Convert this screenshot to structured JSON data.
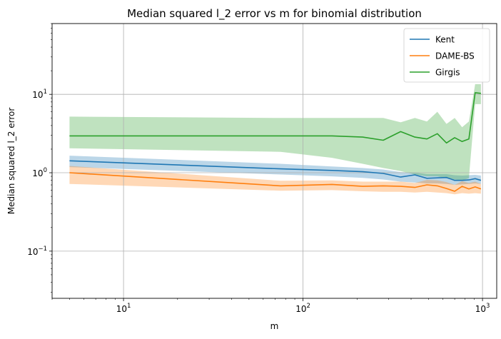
{
  "chart_data": {
    "type": "line",
    "title": "Median squared l_2 error vs m for binomial distribution",
    "xlabel": "m",
    "ylabel": "Median squared l_2 error",
    "xscale": "log",
    "yscale": "log",
    "xlim": [
      4,
      1200
    ],
    "ylim": [
      0.025,
      80
    ],
    "grid": true,
    "legend_position": "top-right",
    "x_ticks": [
      {
        "value": 10,
        "base": "10",
        "exp": "1"
      },
      {
        "value": 100,
        "base": "10",
        "exp": "2"
      },
      {
        "value": 1000,
        "base": "10",
        "exp": "3"
      }
    ],
    "y_ticks": [
      {
        "value": 0.1,
        "base": "10",
        "exp": "−1"
      },
      {
        "value": 1,
        "base": "10",
        "exp": "0"
      },
      {
        "value": 10,
        "base": "10",
        "exp": "1"
      }
    ],
    "series": [
      {
        "name": "Kent",
        "color": "#1f77b4",
        "band_color": "#1f77b4",
        "points": [
          [
            5,
            1.42
          ],
          [
            75,
            1.12
          ],
          [
            145,
            1.07
          ],
          [
            215,
            1.03
          ],
          [
            280,
            0.98
          ],
          [
            350,
            0.88
          ],
          [
            420,
            0.94
          ],
          [
            490,
            0.85
          ],
          [
            560,
            0.86
          ],
          [
            630,
            0.87
          ],
          [
            700,
            0.8
          ],
          [
            770,
            0.8
          ],
          [
            840,
            0.81
          ],
          [
            910,
            0.84
          ],
          [
            980,
            0.8
          ]
        ],
        "band_lower": [
          [
            5,
            1.18
          ],
          [
            75,
            0.95
          ],
          [
            145,
            0.9
          ],
          [
            215,
            0.86
          ],
          [
            280,
            0.82
          ],
          [
            350,
            0.77
          ],
          [
            420,
            0.75
          ],
          [
            490,
            0.73
          ],
          [
            560,
            0.73
          ],
          [
            630,
            0.72
          ],
          [
            700,
            0.7
          ],
          [
            770,
            0.71
          ],
          [
            840,
            0.72
          ],
          [
            910,
            0.73
          ],
          [
            980,
            0.72
          ]
        ],
        "band_upper": [
          [
            5,
            1.65
          ],
          [
            75,
            1.3
          ],
          [
            145,
            1.2
          ],
          [
            215,
            1.15
          ],
          [
            280,
            1.1
          ],
          [
            350,
            1.02
          ],
          [
            420,
            1.0
          ],
          [
            490,
            0.96
          ],
          [
            560,
            0.96
          ],
          [
            630,
            0.96
          ],
          [
            700,
            0.93
          ],
          [
            770,
            0.92
          ],
          [
            840,
            0.93
          ],
          [
            910,
            0.94
          ],
          [
            980,
            0.92
          ]
        ]
      },
      {
        "name": "DAME-BS",
        "color": "#ff7f0e",
        "band_color": "#ff7f0e",
        "points": [
          [
            5,
            1.0
          ],
          [
            75,
            0.68
          ],
          [
            145,
            0.71
          ],
          [
            215,
            0.67
          ],
          [
            280,
            0.68
          ],
          [
            350,
            0.67
          ],
          [
            420,
            0.65
          ],
          [
            490,
            0.7
          ],
          [
            560,
            0.68
          ],
          [
            630,
            0.63
          ],
          [
            700,
            0.58
          ],
          [
            770,
            0.67
          ],
          [
            840,
            0.62
          ],
          [
            910,
            0.66
          ],
          [
            980,
            0.62
          ]
        ],
        "band_lower": [
          [
            5,
            0.72
          ],
          [
            75,
            0.59
          ],
          [
            145,
            0.6
          ],
          [
            215,
            0.58
          ],
          [
            280,
            0.57
          ],
          [
            350,
            0.57
          ],
          [
            420,
            0.56
          ],
          [
            490,
            0.57
          ],
          [
            560,
            0.56
          ],
          [
            630,
            0.55
          ],
          [
            700,
            0.53
          ],
          [
            770,
            0.55
          ],
          [
            840,
            0.54
          ],
          [
            910,
            0.55
          ],
          [
            980,
            0.54
          ]
        ],
        "band_upper": [
          [
            5,
            1.22
          ],
          [
            75,
            0.79
          ],
          [
            145,
            0.8
          ],
          [
            215,
            0.77
          ],
          [
            280,
            0.77
          ],
          [
            350,
            0.77
          ],
          [
            420,
            0.74
          ],
          [
            490,
            0.81
          ],
          [
            560,
            0.8
          ],
          [
            630,
            0.76
          ],
          [
            700,
            0.7
          ],
          [
            770,
            0.78
          ],
          [
            840,
            0.74
          ],
          [
            910,
            0.77
          ],
          [
            980,
            0.72
          ]
        ]
      },
      {
        "name": "Girgis",
        "color": "#2ca02c",
        "band_color": "#2ca02c",
        "points": [
          [
            5,
            2.95
          ],
          [
            75,
            2.95
          ],
          [
            145,
            2.95
          ],
          [
            215,
            2.85
          ],
          [
            280,
            2.6
          ],
          [
            350,
            3.35
          ],
          [
            420,
            2.85
          ],
          [
            490,
            2.7
          ],
          [
            560,
            3.15
          ],
          [
            630,
            2.4
          ],
          [
            700,
            2.8
          ],
          [
            770,
            2.5
          ],
          [
            840,
            2.7
          ],
          [
            910,
            10.5
          ],
          [
            980,
            10.3
          ]
        ],
        "band_lower": [
          [
            5,
            2.05
          ],
          [
            75,
            1.85
          ],
          [
            145,
            1.55
          ],
          [
            215,
            1.3
          ],
          [
            280,
            1.15
          ],
          [
            350,
            1.05
          ],
          [
            420,
            0.95
          ],
          [
            490,
            0.9
          ],
          [
            560,
            0.9
          ],
          [
            630,
            0.85
          ],
          [
            700,
            0.82
          ],
          [
            770,
            0.8
          ],
          [
            840,
            0.85
          ],
          [
            910,
            7.5
          ],
          [
            980,
            7.5
          ]
        ],
        "band_upper": [
          [
            5,
            5.2
          ],
          [
            75,
            5.0
          ],
          [
            145,
            5.0
          ],
          [
            215,
            5.0
          ],
          [
            280,
            5.0
          ],
          [
            350,
            4.4
          ],
          [
            420,
            5.0
          ],
          [
            490,
            4.5
          ],
          [
            560,
            6.0
          ],
          [
            630,
            4.2
          ],
          [
            700,
            5.0
          ],
          [
            770,
            3.8
          ],
          [
            840,
            4.5
          ],
          [
            910,
            13.5
          ],
          [
            980,
            13.5
          ]
        ]
      }
    ]
  }
}
